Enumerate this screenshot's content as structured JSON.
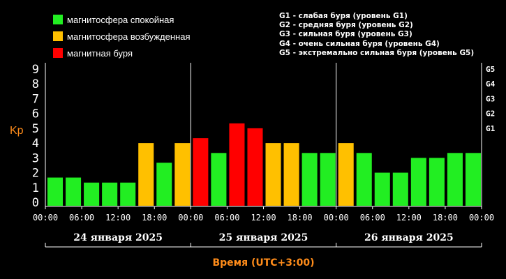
{
  "legend": {
    "items": [
      {
        "label": "магнитосфера спокойная",
        "color": "#22ee22"
      },
      {
        "label": "магнитосфера возбужденная",
        "color": "#ffc000"
      },
      {
        "label": "магнитная буря",
        "color": "#ff0000"
      }
    ],
    "storm_levels": [
      "G1 - слабая буря (уровень G1)",
      "G2 - средняя буря (уровень G2)",
      "G3 - сильная буря (уровень G3)",
      "G4 - очень сильная буря (уровень G4)",
      "G5 - экстремально сильная буря (уровень G5)"
    ]
  },
  "chart_data": {
    "type": "bar",
    "ylabel": "Kp",
    "xlabel": "Время (UTC+3:00)",
    "ylim": [
      0,
      9
    ],
    "yticks": [
      "0",
      "1",
      "2",
      "3",
      "4",
      "5",
      "6",
      "7",
      "8",
      "9"
    ],
    "right_ticks": [
      {
        "label": "G1",
        "value": 5
      },
      {
        "label": "G2",
        "value": 6
      },
      {
        "label": "G3",
        "value": 7
      },
      {
        "label": "G4",
        "value": 8
      },
      {
        "label": "G5",
        "value": 9
      }
    ],
    "xticks": [
      "00:00",
      "06:00",
      "12:00",
      "18:00",
      "00:00",
      "06:00",
      "12:00",
      "18:00",
      "00:00",
      "06:00",
      "12:00",
      "18:00",
      "00:00"
    ],
    "days": [
      "24 января 2025",
      "25 января 2025",
      "26 января 2025"
    ],
    "values": [
      1.67,
      1.67,
      1.33,
      1.33,
      1.33,
      4.0,
      2.67,
      4.0,
      4.33,
      3.33,
      5.33,
      5.0,
      4.0,
      4.0,
      3.33,
      3.33,
      4.0,
      3.33,
      2.0,
      2.0,
      3.0,
      3.0,
      3.33,
      3.33
    ],
    "colors": [
      "#22ee22",
      "#22ee22",
      "#22ee22",
      "#22ee22",
      "#22ee22",
      "#ffc000",
      "#22ee22",
      "#ffc000",
      "#ff0000",
      "#22ee22",
      "#ff0000",
      "#ff0000",
      "#ffc000",
      "#ffc000",
      "#22ee22",
      "#22ee22",
      "#ffc000",
      "#22ee22",
      "#22ee22",
      "#22ee22",
      "#22ee22",
      "#22ee22",
      "#22ee22",
      "#22ee22"
    ],
    "grid": false,
    "axis_text_color": "#ffffff",
    "accent_label_color": "#ff8c1a"
  }
}
